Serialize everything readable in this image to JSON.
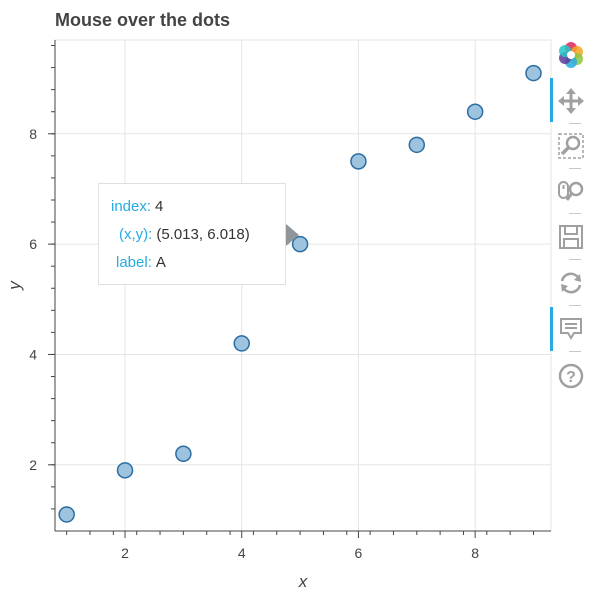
{
  "title": "Mouse over the dots",
  "tooltip": {
    "index_key": "index:",
    "index_val": "4",
    "xy_key": "(x,y):",
    "xy_val": "(5.013, 6.018)",
    "label_key": "label:",
    "label_val": "A"
  },
  "toolbar": {
    "tools": [
      "bokeh-logo",
      "pan-icon",
      "box-zoom-icon",
      "wheel-zoom-icon",
      "save-icon",
      "reset-icon",
      "hover-icon",
      "help-icon"
    ],
    "active": [
      "pan-icon",
      "hover-icon"
    ]
  },
  "colors": {
    "point_fill": "#9ec3df",
    "point_stroke": "#2b6ea3",
    "accent": "#26aae1",
    "grid": "#e5e5e5",
    "axis": "#444444"
  },
  "chart_data": {
    "type": "scatter",
    "title": "Mouse over the dots",
    "xlabel": "x",
    "ylabel": "y",
    "x": [
      1,
      2,
      3,
      4,
      5,
      6,
      7,
      8,
      9
    ],
    "y": [
      1.1,
      1.9,
      2.2,
      4.2,
      6.0,
      7.5,
      7.8,
      8.4,
      9.1
    ],
    "xlim": [
      0.8,
      9.3
    ],
    "ylim": [
      0.8,
      9.7
    ],
    "xticks": [
      "2",
      "4",
      "6",
      "8"
    ],
    "yticks": [
      "2",
      "4",
      "6",
      "8"
    ],
    "grid": true
  }
}
